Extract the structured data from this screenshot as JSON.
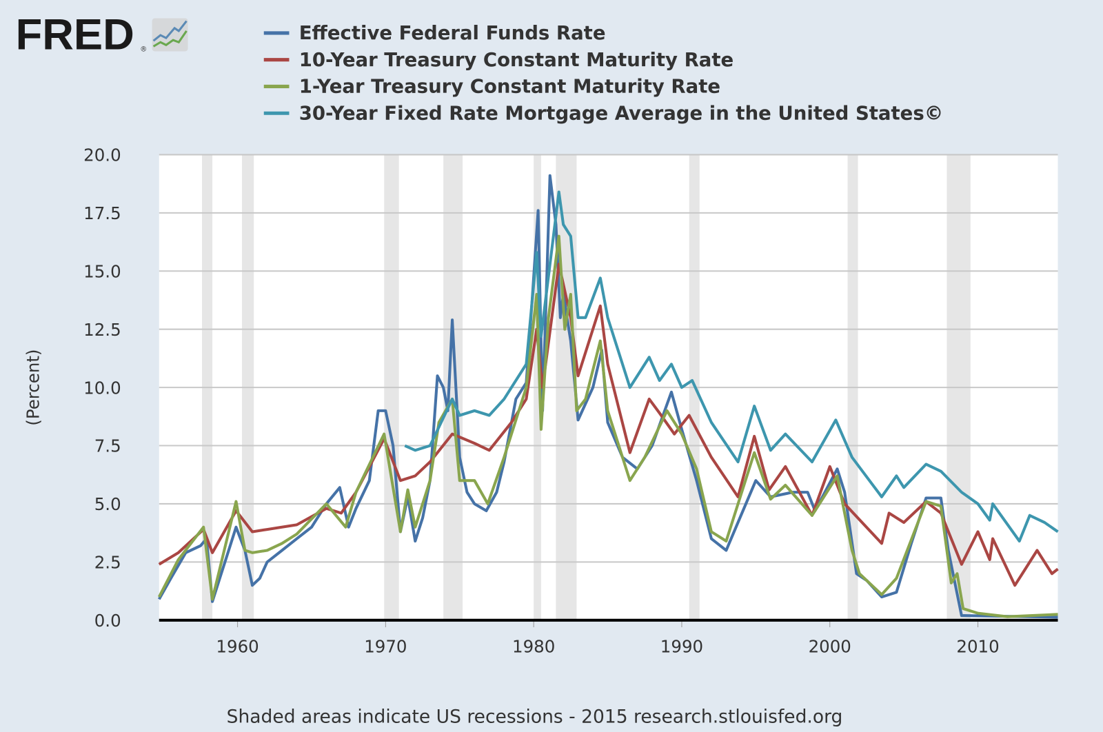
{
  "logo": {
    "text": "FRED",
    "registered": "®"
  },
  "chart_data": {
    "type": "line",
    "title": "",
    "xlabel": "",
    "ylabel": "(Percent)",
    "xlim": [
      1954.7,
      2015.4
    ],
    "ylim": [
      0,
      20
    ],
    "x_ticks": [
      "1960",
      "1970",
      "1980",
      "1990",
      "2000",
      "2010"
    ],
    "y_ticks": [
      "0.0",
      "2.5",
      "5.0",
      "7.5",
      "10.0",
      "12.5",
      "15.0",
      "17.5",
      "20.0"
    ],
    "grid": true,
    "legend_position": "top",
    "recessions": [
      [
        1957.6,
        1958.3
      ],
      [
        1960.3,
        1961.1
      ],
      [
        1969.9,
        1970.9
      ],
      [
        1973.9,
        1975.2
      ],
      [
        1980.0,
        1980.5
      ],
      [
        1981.5,
        1982.9
      ],
      [
        1990.5,
        1991.2
      ],
      [
        2001.2,
        2001.9
      ],
      [
        2007.9,
        2009.5
      ]
    ],
    "series": [
      {
        "name": "Effective Federal Funds Rate",
        "color": "#4572a7",
        "points": [
          [
            1954.7,
            0.9
          ],
          [
            1955.5,
            1.8
          ],
          [
            1956.5,
            2.9
          ],
          [
            1957.5,
            3.2
          ],
          [
            1957.9,
            3.5
          ],
          [
            1958.3,
            0.8
          ],
          [
            1958.8,
            1.8
          ],
          [
            1959.5,
            3.2
          ],
          [
            1959.9,
            4.0
          ],
          [
            1960.5,
            3.0
          ],
          [
            1961,
            1.5
          ],
          [
            1961.5,
            1.8
          ],
          [
            1962,
            2.5
          ],
          [
            1963,
            3.0
          ],
          [
            1964,
            3.5
          ],
          [
            1965,
            4.0
          ],
          [
            1966,
            5.0
          ],
          [
            1966.9,
            5.7
          ],
          [
            1967.5,
            4.0
          ],
          [
            1968,
            4.8
          ],
          [
            1968.9,
            6.0
          ],
          [
            1969.5,
            9.0
          ],
          [
            1970,
            9.0
          ],
          [
            1970.5,
            7.5
          ],
          [
            1971,
            3.8
          ],
          [
            1971.5,
            5.3
          ],
          [
            1972,
            3.4
          ],
          [
            1972.5,
            4.4
          ],
          [
            1973,
            6.0
          ],
          [
            1973.5,
            10.5
          ],
          [
            1973.9,
            10.0
          ],
          [
            1974.2,
            9.0
          ],
          [
            1974.5,
            12.9
          ],
          [
            1975,
            7.0
          ],
          [
            1975.5,
            5.5
          ],
          [
            1976,
            5.0
          ],
          [
            1976.8,
            4.7
          ],
          [
            1977.5,
            5.5
          ],
          [
            1978,
            6.8
          ],
          [
            1978.8,
            9.5
          ],
          [
            1979.5,
            10.2
          ],
          [
            1979.9,
            13.8
          ],
          [
            1980.3,
            17.6
          ],
          [
            1980.6,
            9.0
          ],
          [
            1980.9,
            15.0
          ],
          [
            1981.1,
            19.1
          ],
          [
            1981.5,
            17.0
          ],
          [
            1981.8,
            13.0
          ],
          [
            1982,
            14.0
          ],
          [
            1982.5,
            12.0
          ],
          [
            1982.8,
            10.0
          ],
          [
            1983,
            8.6
          ],
          [
            1984,
            10.0
          ],
          [
            1984.6,
            11.6
          ],
          [
            1985,
            8.5
          ],
          [
            1986,
            7.0
          ],
          [
            1987,
            6.5
          ],
          [
            1988,
            7.5
          ],
          [
            1989.3,
            9.8
          ],
          [
            1990,
            8.2
          ],
          [
            1991,
            6.0
          ],
          [
            1992,
            3.5
          ],
          [
            1993,
            3.0
          ],
          [
            1994,
            4.5
          ],
          [
            1995,
            6.0
          ],
          [
            1996,
            5.3
          ],
          [
            1997.5,
            5.5
          ],
          [
            1998.5,
            5.5
          ],
          [
            1999,
            4.7
          ],
          [
            2000.5,
            6.5
          ],
          [
            2001,
            5.5
          ],
          [
            2001.8,
            2.0
          ],
          [
            2002.5,
            1.7
          ],
          [
            2003.5,
            1.0
          ],
          [
            2004.5,
            1.2
          ],
          [
            2005.5,
            3.3
          ],
          [
            2006.5,
            5.25
          ],
          [
            2007.5,
            5.25
          ],
          [
            2008,
            3.0
          ],
          [
            2008.9,
            0.2
          ],
          [
            2015.4,
            0.13
          ]
        ]
      },
      {
        "name": "10-Year Treasury Constant Maturity Rate",
        "color": "#aa4643",
        "points": [
          [
            1954.7,
            2.4
          ],
          [
            1956,
            2.9
          ],
          [
            1957.7,
            3.9
          ],
          [
            1958.3,
            2.9
          ],
          [
            1959.9,
            4.7
          ],
          [
            1961,
            3.8
          ],
          [
            1962,
            3.9
          ],
          [
            1964,
            4.1
          ],
          [
            1966,
            4.8
          ],
          [
            1967,
            4.6
          ],
          [
            1968,
            5.5
          ],
          [
            1969.9,
            7.8
          ],
          [
            1971,
            6.0
          ],
          [
            1972,
            6.2
          ],
          [
            1973,
            6.8
          ],
          [
            1974.5,
            8.0
          ],
          [
            1976,
            7.6
          ],
          [
            1977,
            7.3
          ],
          [
            1978.5,
            8.5
          ],
          [
            1979.5,
            9.5
          ],
          [
            1980.2,
            12.5
          ],
          [
            1980.6,
            10.0
          ],
          [
            1981.7,
            15.3
          ],
          [
            1982.5,
            13.0
          ],
          [
            1983,
            10.5
          ],
          [
            1984.5,
            13.5
          ],
          [
            1985,
            11.0
          ],
          [
            1986.5,
            7.2
          ],
          [
            1987.8,
            9.5
          ],
          [
            1988.5,
            8.9
          ],
          [
            1989.5,
            8.0
          ],
          [
            1990.5,
            8.8
          ],
          [
            1992,
            7.0
          ],
          [
            1993.8,
            5.3
          ],
          [
            1994.9,
            7.9
          ],
          [
            1995.9,
            5.6
          ],
          [
            1997,
            6.6
          ],
          [
            1998.8,
            4.5
          ],
          [
            2000,
            6.6
          ],
          [
            2001,
            5.0
          ],
          [
            2003.5,
            3.3
          ],
          [
            2004,
            4.6
          ],
          [
            2005,
            4.2
          ],
          [
            2006.5,
            5.1
          ],
          [
            2007.5,
            4.6
          ],
          [
            2008.9,
            2.4
          ],
          [
            2010,
            3.8
          ],
          [
            2010.8,
            2.6
          ],
          [
            2011,
            3.5
          ],
          [
            2012.5,
            1.5
          ],
          [
            2013,
            2.0
          ],
          [
            2014,
            3.0
          ],
          [
            2015,
            2.0
          ],
          [
            2015.4,
            2.2
          ]
        ]
      },
      {
        "name": "1-Year Treasury Constant Maturity Rate",
        "color": "#89a54e",
        "points": [
          [
            1954.7,
            1.0
          ],
          [
            1956,
            2.6
          ],
          [
            1957.7,
            4.0
          ],
          [
            1958.3,
            0.9
          ],
          [
            1959.9,
            5.1
          ],
          [
            1960.5,
            3.0
          ],
          [
            1961,
            2.9
          ],
          [
            1962,
            3.0
          ],
          [
            1963,
            3.3
          ],
          [
            1964,
            3.7
          ],
          [
            1966,
            5.0
          ],
          [
            1967.3,
            4.0
          ],
          [
            1968,
            5.5
          ],
          [
            1969.9,
            8.0
          ],
          [
            1971,
            3.8
          ],
          [
            1971.5,
            5.6
          ],
          [
            1972,
            4.0
          ],
          [
            1973,
            6.0
          ],
          [
            1973.6,
            8.5
          ],
          [
            1974.5,
            9.5
          ],
          [
            1975,
            6.0
          ],
          [
            1976,
            6.0
          ],
          [
            1976.9,
            5.0
          ],
          [
            1978,
            7.0
          ],
          [
            1979.5,
            10.0
          ],
          [
            1980.2,
            14.0
          ],
          [
            1980.5,
            8.2
          ],
          [
            1981,
            13.0
          ],
          [
            1981.7,
            16.5
          ],
          [
            1982.1,
            12.5
          ],
          [
            1982.5,
            14.0
          ],
          [
            1982.9,
            9.0
          ],
          [
            1983.5,
            9.5
          ],
          [
            1984.5,
            12.0
          ],
          [
            1985,
            9.0
          ],
          [
            1986.5,
            6.0
          ],
          [
            1987.5,
            7.0
          ],
          [
            1989,
            9.0
          ],
          [
            1990,
            8.0
          ],
          [
            1991,
            6.5
          ],
          [
            1992,
            3.8
          ],
          [
            1993,
            3.4
          ],
          [
            1994.9,
            7.2
          ],
          [
            1996,
            5.2
          ],
          [
            1997,
            5.8
          ],
          [
            1998.8,
            4.5
          ],
          [
            2000.5,
            6.2
          ],
          [
            2001.5,
            3.0
          ],
          [
            2002,
            2.0
          ],
          [
            2003.5,
            1.1
          ],
          [
            2004.5,
            1.8
          ],
          [
            2006.5,
            5.1
          ],
          [
            2007.5,
            4.9
          ],
          [
            2008.2,
            1.6
          ],
          [
            2008.6,
            2.0
          ],
          [
            2009,
            0.5
          ],
          [
            2010,
            0.3
          ],
          [
            2012,
            0.15
          ],
          [
            2015.4,
            0.25
          ]
        ]
      },
      {
        "name": "30-Year Fixed Rate Mortgage Average in the United States©",
        "color": "#3d96ae",
        "points": [
          [
            1971.3,
            7.5
          ],
          [
            1972,
            7.3
          ],
          [
            1973,
            7.5
          ],
          [
            1974.5,
            9.5
          ],
          [
            1975,
            8.8
          ],
          [
            1976,
            9.0
          ],
          [
            1977,
            8.8
          ],
          [
            1978,
            9.5
          ],
          [
            1979.5,
            11.0
          ],
          [
            1980.2,
            15.8
          ],
          [
            1980.5,
            12.2
          ],
          [
            1981.7,
            18.4
          ],
          [
            1982,
            17.0
          ],
          [
            1982.5,
            16.5
          ],
          [
            1983,
            13.0
          ],
          [
            1983.5,
            13.0
          ],
          [
            1984.5,
            14.7
          ],
          [
            1985,
            13.0
          ],
          [
            1986.5,
            10.0
          ],
          [
            1987.8,
            11.3
          ],
          [
            1988.5,
            10.3
          ],
          [
            1989.3,
            11.0
          ],
          [
            1990,
            10.0
          ],
          [
            1990.7,
            10.3
          ],
          [
            1992,
            8.5
          ],
          [
            1993.8,
            6.8
          ],
          [
            1994.9,
            9.2
          ],
          [
            1996,
            7.3
          ],
          [
            1997,
            8.0
          ],
          [
            1998.8,
            6.8
          ],
          [
            2000.4,
            8.6
          ],
          [
            2001.5,
            7.0
          ],
          [
            2003.5,
            5.3
          ],
          [
            2004.5,
            6.2
          ],
          [
            2005,
            5.7
          ],
          [
            2006.5,
            6.7
          ],
          [
            2007.5,
            6.4
          ],
          [
            2008.9,
            5.5
          ],
          [
            2010,
            5.0
          ],
          [
            2010.8,
            4.3
          ],
          [
            2011,
            5.0
          ],
          [
            2012.8,
            3.4
          ],
          [
            2013.5,
            4.5
          ],
          [
            2014.5,
            4.2
          ],
          [
            2015.4,
            3.8
          ]
        ]
      }
    ]
  },
  "footer": "Shaded areas indicate US recessions - 2015 research.stlouisfed.org"
}
